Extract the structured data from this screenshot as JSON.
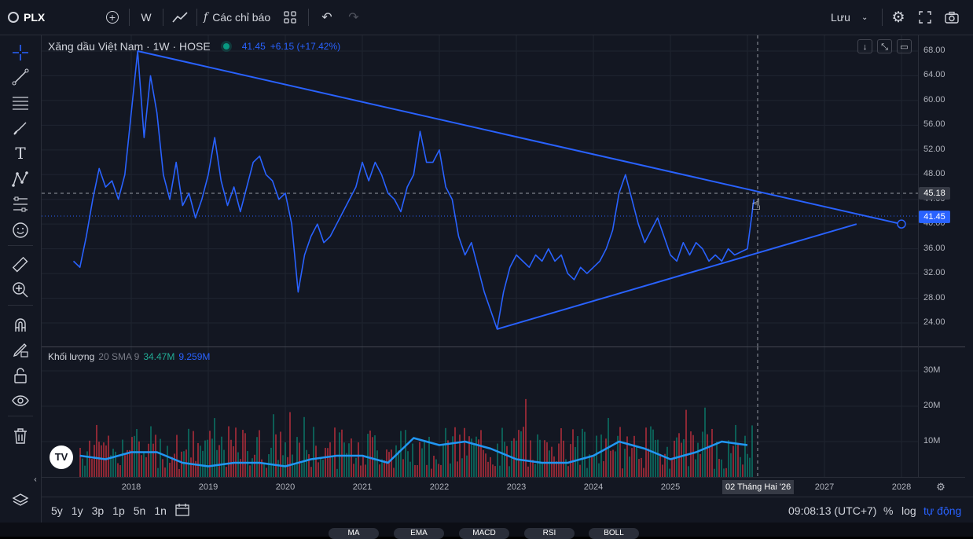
{
  "toolbar": {
    "symbol": "PLX",
    "interval": "W",
    "indicators_label": "Các chỉ báo",
    "save_label": "Lưu"
  },
  "legend": {
    "title": "Xăng dầu Việt Nam · 1W · HOSE",
    "price": "41.45",
    "change": "+6.15 (+17.42%)"
  },
  "volume_legend": {
    "title": "Khối lượng",
    "params": "20 SMA 9",
    "value1": "34.47M",
    "value2": "9.259M"
  },
  "price_axis": {
    "ticks": [
      "68.00",
      "64.00",
      "60.00",
      "56.00",
      "52.00",
      "48.00",
      "44.00",
      "40.00",
      "36.00",
      "32.00",
      "28.00",
      "24.00"
    ],
    "crosshair_label": "45.18",
    "last_price_label": "41.45"
  },
  "volume_axis": {
    "ticks": [
      "30M",
      "20M",
      "10M"
    ]
  },
  "time_axis": {
    "ticks": [
      "2018",
      "2019",
      "2020",
      "2021",
      "2022",
      "2023",
      "2024",
      "2025",
      "2027",
      "2028"
    ],
    "crosshair_label": "02 Tháng Hai '26"
  },
  "bottombar": {
    "ranges": [
      "5y",
      "1y",
      "3p",
      "1p",
      "5n",
      "1n"
    ],
    "clock": "09:08:13 (UTC+7)",
    "percent": "%",
    "log": "log",
    "auto": "tự động"
  },
  "tabs": [
    "MA",
    "EMA",
    "MACD",
    "RSI",
    "BOLL"
  ],
  "chart_data": {
    "type": "line",
    "x_range": [
      "2017-04",
      "2028-01"
    ],
    "y_range": [
      21,
      69
    ],
    "series": [
      {
        "name": "PLX",
        "points": [
          [
            "2017-04",
            34
          ],
          [
            "2017-05",
            33
          ],
          [
            "2017-06",
            38
          ],
          [
            "2017-07",
            44
          ],
          [
            "2017-08",
            49
          ],
          [
            "2017-09",
            46
          ],
          [
            "2017-10",
            47
          ],
          [
            "2017-11",
            44
          ],
          [
            "2017-12",
            48
          ],
          [
            "2018-01",
            58
          ],
          [
            "2018-02",
            68
          ],
          [
            "2018-03",
            54
          ],
          [
            "2018-04",
            64
          ],
          [
            "2018-05",
            58
          ],
          [
            "2018-06",
            48
          ],
          [
            "2018-07",
            44
          ],
          [
            "2018-08",
            50
          ],
          [
            "2018-09",
            43
          ],
          [
            "2018-10",
            45
          ],
          [
            "2018-11",
            41
          ],
          [
            "2018-12",
            44
          ],
          [
            "2019-01",
            48
          ],
          [
            "2019-02",
            54
          ],
          [
            "2019-03",
            47
          ],
          [
            "2019-04",
            43
          ],
          [
            "2019-05",
            46
          ],
          [
            "2019-06",
            42
          ],
          [
            "2019-07",
            46
          ],
          [
            "2019-08",
            50
          ],
          [
            "2019-09",
            51
          ],
          [
            "2019-10",
            48
          ],
          [
            "2019-11",
            47
          ],
          [
            "2019-12",
            44
          ],
          [
            "2020-01",
            45
          ],
          [
            "2020-02",
            40
          ],
          [
            "2020-03",
            29
          ],
          [
            "2020-04",
            35
          ],
          [
            "2020-05",
            38
          ],
          [
            "2020-06",
            40
          ],
          [
            "2020-07",
            37
          ],
          [
            "2020-08",
            38
          ],
          [
            "2020-09",
            40
          ],
          [
            "2020-10",
            42
          ],
          [
            "2020-11",
            44
          ],
          [
            "2020-12",
            46
          ],
          [
            "2021-01",
            50
          ],
          [
            "2021-02",
            47
          ],
          [
            "2021-03",
            50
          ],
          [
            "2021-04",
            48
          ],
          [
            "2021-05",
            45
          ],
          [
            "2021-06",
            44
          ],
          [
            "2021-07",
            42
          ],
          [
            "2021-08",
            46
          ],
          [
            "2021-09",
            48
          ],
          [
            "2021-10",
            55
          ],
          [
            "2021-11",
            50
          ],
          [
            "2021-12",
            50
          ],
          [
            "2022-01",
            52
          ],
          [
            "2022-02",
            46
          ],
          [
            "2022-03",
            44
          ],
          [
            "2022-04",
            38
          ],
          [
            "2022-05",
            35
          ],
          [
            "2022-06",
            37
          ],
          [
            "2022-07",
            33
          ],
          [
            "2022-08",
            29
          ],
          [
            "2022-09",
            26
          ],
          [
            "2022-10",
            23
          ],
          [
            "2022-11",
            29
          ],
          [
            "2022-12",
            33
          ],
          [
            "2023-01",
            35
          ],
          [
            "2023-02",
            34
          ],
          [
            "2023-03",
            33
          ],
          [
            "2023-04",
            35
          ],
          [
            "2023-05",
            34
          ],
          [
            "2023-06",
            36
          ],
          [
            "2023-07",
            34
          ],
          [
            "2023-08",
            35
          ],
          [
            "2023-09",
            32
          ],
          [
            "2023-10",
            31
          ],
          [
            "2023-11",
            33
          ],
          [
            "2023-12",
            32
          ],
          [
            "2024-01",
            33
          ],
          [
            "2024-02",
            34
          ],
          [
            "2024-03",
            36
          ],
          [
            "2024-04",
            39
          ],
          [
            "2024-05",
            45
          ],
          [
            "2024-06",
            48
          ],
          [
            "2024-07",
            44
          ],
          [
            "2024-08",
            40
          ],
          [
            "2024-09",
            37
          ],
          [
            "2024-10",
            39
          ],
          [
            "2024-11",
            41
          ],
          [
            "2024-12",
            38
          ],
          [
            "2025-01",
            35
          ],
          [
            "2025-02",
            34
          ],
          [
            "2025-03",
            37
          ],
          [
            "2025-04",
            35
          ],
          [
            "2025-05",
            37
          ],
          [
            "2025-06",
            36
          ],
          [
            "2025-07",
            34
          ],
          [
            "2025-08",
            35
          ],
          [
            "2025-09",
            34
          ],
          [
            "2025-10",
            36
          ],
          [
            "2025-11",
            35
          ],
          [
            "2026-01",
            36
          ],
          [
            "2026-02",
            44
          ]
        ]
      },
      {
        "name": "Khối lượng SMA 9",
        "points": [
          [
            "2017-05",
            6
          ],
          [
            "2017-09",
            5
          ],
          [
            "2018-01",
            7
          ],
          [
            "2018-05",
            7
          ],
          [
            "2018-09",
            4
          ],
          [
            "2019-01",
            3
          ],
          [
            "2019-05",
            4
          ],
          [
            "2019-09",
            4
          ],
          [
            "2020-01",
            3
          ],
          [
            "2020-05",
            5
          ],
          [
            "2020-09",
            6
          ],
          [
            "2021-01",
            6
          ],
          [
            "2021-05",
            4
          ],
          [
            "2021-09",
            11
          ],
          [
            "2022-01",
            9
          ],
          [
            "2022-05",
            10
          ],
          [
            "2022-09",
            8
          ],
          [
            "2023-01",
            5
          ],
          [
            "2023-05",
            4
          ],
          [
            "2023-09",
            4
          ],
          [
            "2024-01",
            6
          ],
          [
            "2024-05",
            10
          ],
          [
            "2024-09",
            8
          ],
          [
            "2025-01",
            5
          ],
          [
            "2025-05",
            7
          ],
          [
            "2025-09",
            10
          ],
          [
            "2026-01",
            9
          ]
        ]
      }
    ],
    "trendlines": [
      {
        "from": [
          "2018-02",
          68
        ],
        "to": [
          "2028-01",
          40
        ]
      },
      {
        "from": [
          "2022-10",
          23
        ],
        "to": [
          "2027-06",
          40
        ]
      }
    ]
  }
}
